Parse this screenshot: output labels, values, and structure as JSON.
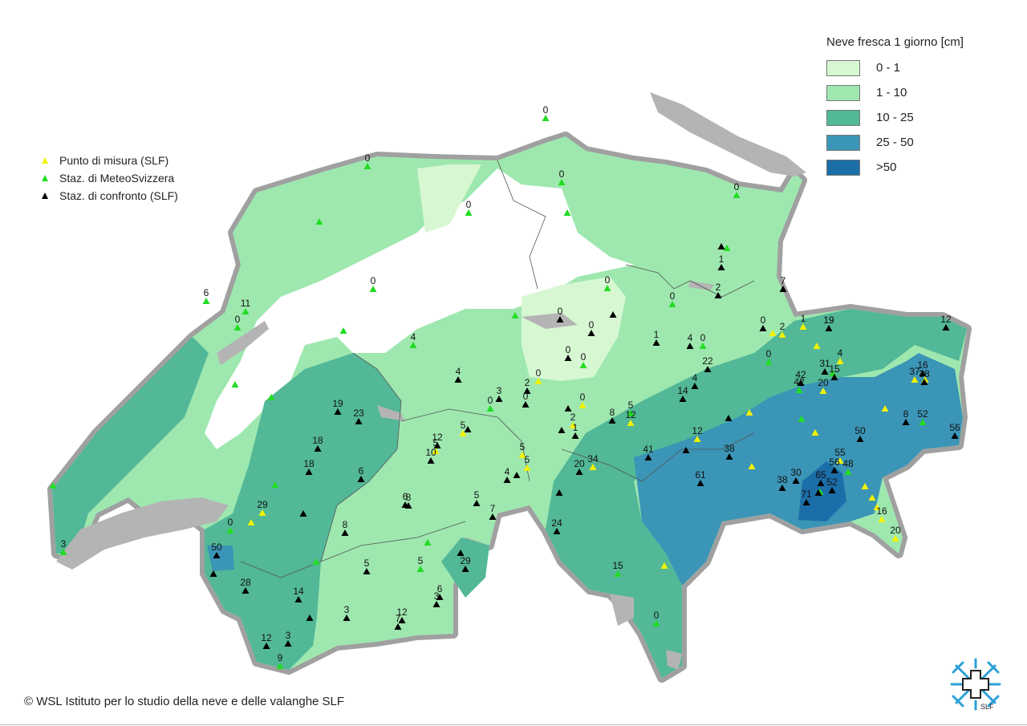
{
  "legend": {
    "title": "Neve fresca 1 giorno [cm]",
    "classes": [
      {
        "label": "0 - 1",
        "color": "#d7f7d2"
      },
      {
        "label": "1 - 10",
        "color": "#9ee8b0"
      },
      {
        "label": "10 - 25",
        "color": "#52b897"
      },
      {
        "label": "25 - 50",
        "color": "#3b95b6"
      },
      {
        "label": ">50",
        "color": "#1c6ea8"
      }
    ]
  },
  "station_types": [
    {
      "label": "Punto di misura (SLF)",
      "color": "#f2f200"
    },
    {
      "label": "Staz. di MeteoSvizzera",
      "color": "#22dd22"
    },
    {
      "label": "Staz. di confronto (SLF)",
      "color": "#000000"
    }
  ],
  "colors": {
    "border": "#a0a0a0",
    "lakes": "#b4b4b4",
    "land_outside": "#ffffff"
  },
  "copyright": "© WSL Istituto per lo studio della neve e delle valanghe SLF",
  "logo_text": "SLF",
  "stations": [
    {
      "v": "0",
      "t": 1,
      "p": [
        680,
        148
      ]
    },
    {
      "v": "0",
      "t": 1,
      "p": [
        458,
        208
      ]
    },
    {
      "v": "0",
      "t": 1,
      "p": [
        700,
        228
      ]
    },
    {
      "v": "0",
      "t": 1,
      "p": [
        584,
        266
      ]
    },
    {
      "v": "",
      "t": 1,
      "p": [
        707,
        266
      ]
    },
    {
      "v": "0",
      "t": 1,
      "p": [
        918,
        244
      ]
    },
    {
      "v": "",
      "t": 1,
      "p": [
        398,
        277
      ]
    },
    {
      "v": "6",
      "t": 1,
      "p": [
        257,
        376
      ]
    },
    {
      "v": "11",
      "t": 1,
      "p": [
        306,
        389
      ]
    },
    {
      "v": "0",
      "t": 1,
      "p": [
        296,
        409
      ]
    },
    {
      "v": "0",
      "t": 1,
      "p": [
        465,
        361
      ]
    },
    {
      "v": "",
      "t": 1,
      "p": [
        428,
        413
      ]
    },
    {
      "v": "4",
      "t": 1,
      "p": [
        515,
        431
      ]
    },
    {
      "v": "",
      "t": 1,
      "p": [
        293,
        480
      ]
    },
    {
      "v": "",
      "t": 1,
      "p": [
        338,
        496
      ]
    },
    {
      "v": "",
      "t": 1,
      "p": [
        66,
        606
      ]
    },
    {
      "v": "3",
      "t": 1,
      "p": [
        79,
        689
      ]
    },
    {
      "v": "0",
      "t": 1,
      "p": [
        757,
        360
      ]
    },
    {
      "v": "0",
      "t": 1,
      "p": [
        838,
        380
      ]
    },
    {
      "v": "",
      "t": 1,
      "p": [
        642,
        394
      ]
    },
    {
      "v": "0",
      "t": 1,
      "p": [
        727,
        456
      ]
    },
    {
      "v": "0",
      "t": 1,
      "p": [
        611,
        510
      ]
    },
    {
      "v": "5",
      "t": 1,
      "p": [
        786,
        516
      ]
    },
    {
      "v": "0",
      "t": 1,
      "p": [
        876,
        432
      ]
    },
    {
      "v": "0",
      "t": 1,
      "p": [
        958,
        452
      ]
    },
    {
      "v": "",
      "t": 1,
      "p": [
        999,
        523
      ]
    },
    {
      "v": "42",
      "t": 1,
      "p": [
        996,
        487
      ]
    },
    {
      "v": "52",
      "t": 1,
      "p": [
        1150,
        527
      ]
    },
    {
      "v": "48",
      "t": 1,
      "p": [
        1057,
        589
      ]
    },
    {
      "v": "",
      "t": 1,
      "p": [
        1022,
        614
      ]
    },
    {
      "v": "",
      "t": 1,
      "p": [
        343,
        605
      ]
    },
    {
      "v": "0",
      "t": 1,
      "p": [
        287,
        662
      ]
    },
    {
      "v": "",
      "t": 1,
      "p": [
        394,
        701
      ]
    },
    {
      "v": "",
      "t": 1,
      "p": [
        533,
        677
      ]
    },
    {
      "v": "5",
      "t": 1,
      "p": [
        524,
        710
      ]
    },
    {
      "v": "15",
      "t": 1,
      "p": [
        770,
        716
      ]
    },
    {
      "v": "0",
      "t": 1,
      "p": [
        818,
        778
      ]
    },
    {
      "v": "9",
      "t": 1,
      "p": [
        349,
        831
      ]
    },
    {
      "v": "",
      "t": 1,
      "p": [
        906,
        310
      ]
    },
    {
      "v": "",
      "t": 1,
      "p": [
        1038,
        466
      ]
    },
    {
      "v": "19",
      "t": 1,
      "p": [
        1033,
        410
      ]
    },
    {
      "v": "0",
      "t": 0,
      "p": [
        671,
        476
      ]
    },
    {
      "v": "1",
      "t": 0,
      "p": [
        1001,
        408
      ]
    },
    {
      "v": "",
      "t": 0,
      "p": [
        963,
        416
      ]
    },
    {
      "v": "2",
      "t": 0,
      "p": [
        975,
        418
      ]
    },
    {
      "v": "",
      "t": 0,
      "p": [
        1018,
        432
      ]
    },
    {
      "v": "4",
      "t": 0,
      "p": [
        1047,
        451
      ]
    },
    {
      "v": "20",
      "t": 0,
      "p": [
        1026,
        488
      ]
    },
    {
      "v": "37",
      "t": 0,
      "p": [
        1140,
        474
      ]
    },
    {
      "v": "",
      "t": 0,
      "p": [
        1103,
        510
      ]
    },
    {
      "v": "",
      "t": 0,
      "p": [
        1016,
        540
      ]
    },
    {
      "v": "",
      "t": 0,
      "p": [
        934,
        515
      ]
    },
    {
      "v": "12",
      "t": 0,
      "p": [
        869,
        548
      ]
    },
    {
      "v": "",
      "t": 0,
      "p": [
        937,
        582
      ]
    },
    {
      "v": "55",
      "t": 0,
      "p": [
        1047,
        575
      ]
    },
    {
      "v": "",
      "t": 0,
      "p": [
        1078,
        607
      ]
    },
    {
      "v": "",
      "t": 0,
      "p": [
        1087,
        621
      ]
    },
    {
      "v": "",
      "t": 0,
      "p": [
        1093,
        633
      ]
    },
    {
      "v": "16",
      "t": 0,
      "p": [
        1099,
        648
      ]
    },
    {
      "v": "20",
      "t": 0,
      "p": [
        1116,
        672
      ]
    },
    {
      "v": "",
      "t": 0,
      "p": [
        828,
        706
      ]
    },
    {
      "v": "0",
      "t": 0,
      "p": [
        726,
        506
      ]
    },
    {
      "v": "2",
      "t": 0,
      "p": [
        714,
        531
      ]
    },
    {
      "v": "12",
      "t": 0,
      "p": [
        786,
        528
      ]
    },
    {
      "v": "34",
      "t": 0,
      "p": [
        739,
        583
      ]
    },
    {
      "v": "5",
      "t": 0,
      "p": [
        577,
        541
      ]
    },
    {
      "v": "5",
      "t": 0,
      "p": [
        543,
        563
      ]
    },
    {
      "v": "5",
      "t": 0,
      "p": [
        651,
        568
      ]
    },
    {
      "v": "5",
      "t": 0,
      "p": [
        657,
        584
      ]
    },
    {
      "v": "29",
      "t": 0,
      "p": [
        327,
        640
      ]
    },
    {
      "v": "",
      "t": 0,
      "p": [
        313,
        652
      ]
    },
    {
      "v": "",
      "t": 0,
      "p": [
        1153,
        474
      ]
    },
    {
      "v": "1",
      "t": 2,
      "p": [
        899,
        334
      ]
    },
    {
      "v": "",
      "t": 2,
      "p": [
        899,
        308
      ]
    },
    {
      "v": "2",
      "t": 2,
      "p": [
        895,
        369
      ]
    },
    {
      "v": "7",
      "t": 2,
      "p": [
        976,
        361
      ]
    },
    {
      "v": "0",
      "t": 2,
      "p": [
        951,
        410
      ]
    },
    {
      "v": "19",
      "t": 2,
      "p": [
        1033,
        410
      ]
    },
    {
      "v": "12",
      "t": 2,
      "p": [
        1179,
        409
      ]
    },
    {
      "v": "16",
      "t": 2,
      "p": [
        1150,
        466
      ]
    },
    {
      "v": "38",
      "t": 2,
      "p": [
        1152,
        477
      ]
    },
    {
      "v": "31",
      "t": 2,
      "p": [
        1028,
        464
      ]
    },
    {
      "v": "15",
      "t": 2,
      "p": [
        1040,
        471
      ]
    },
    {
      "v": "42",
      "t": 2,
      "p": [
        998,
        478
      ]
    },
    {
      "v": "8",
      "t": 2,
      "p": [
        1129,
        527
      ]
    },
    {
      "v": "50",
      "t": 2,
      "p": [
        1072,
        548
      ]
    },
    {
      "v": "56",
      "t": 2,
      "p": [
        1190,
        544
      ]
    },
    {
      "v": "30",
      "t": 2,
      "p": [
        992,
        600
      ]
    },
    {
      "v": "38",
      "t": 2,
      "p": [
        975,
        609
      ]
    },
    {
      "v": "56",
      "t": 2,
      "p": [
        1040,
        587
      ]
    },
    {
      "v": "65",
      "t": 2,
      "p": [
        1023,
        603
      ]
    },
    {
      "v": "52",
      "t": 2,
      "p": [
        1037,
        612
      ]
    },
    {
      "v": "71",
      "t": 2,
      "p": [
        1005,
        627
      ]
    },
    {
      "v": "",
      "t": 2,
      "p": [
        1020,
        615
      ]
    },
    {
      "v": "1",
      "t": 2,
      "p": [
        818,
        428
      ]
    },
    {
      "v": "4",
      "t": 2,
      "p": [
        860,
        432
      ]
    },
    {
      "v": "22",
      "t": 2,
      "p": [
        882,
        461
      ]
    },
    {
      "v": "4",
      "t": 2,
      "p": [
        866,
        482
      ]
    },
    {
      "v": "14",
      "t": 2,
      "p": [
        851,
        498
      ]
    },
    {
      "v": "",
      "t": 2,
      "p": [
        908,
        522
      ]
    },
    {
      "v": "38",
      "t": 2,
      "p": [
        909,
        570
      ]
    },
    {
      "v": "61",
      "t": 2,
      "p": [
        873,
        603
      ]
    },
    {
      "v": "41",
      "t": 2,
      "p": [
        808,
        571
      ]
    },
    {
      "v": "",
      "t": 2,
      "p": [
        855,
        562
      ]
    },
    {
      "v": "8",
      "t": 2,
      "p": [
        763,
        525
      ]
    },
    {
      "v": "",
      "t": 2,
      "p": [
        708,
        510
      ]
    },
    {
      "v": "",
      "t": 2,
      "p": [
        700,
        537
      ]
    },
    {
      "v": "1",
      "t": 2,
      "p": [
        717,
        544
      ]
    },
    {
      "v": "20",
      "t": 2,
      "p": [
        722,
        589
      ]
    },
    {
      "v": "24",
      "t": 2,
      "p": [
        694,
        663
      ]
    },
    {
      "v": "",
      "t": 2,
      "p": [
        697,
        615
      ]
    },
    {
      "v": "",
      "t": 2,
      "p": [
        764,
        393
      ]
    },
    {
      "v": "0",
      "t": 2,
      "p": [
        698,
        399
      ]
    },
    {
      "v": "0",
      "t": 2,
      "p": [
        737,
        416
      ]
    },
    {
      "v": "0",
      "t": 2,
      "p": [
        708,
        447
      ]
    },
    {
      "v": "2",
      "t": 2,
      "p": [
        657,
        488
      ]
    },
    {
      "v": "3",
      "t": 2,
      "p": [
        622,
        498
      ]
    },
    {
      "v": "0",
      "t": 2,
      "p": [
        655,
        505
      ]
    },
    {
      "v": "4",
      "t": 2,
      "p": [
        571,
        474
      ]
    },
    {
      "v": "12",
      "t": 2,
      "p": [
        545,
        556
      ]
    },
    {
      "v": "10",
      "t": 2,
      "p": [
        537,
        575
      ]
    },
    {
      "v": "",
      "t": 2,
      "p": [
        644,
        593
      ]
    },
    {
      "v": "4",
      "t": 2,
      "p": [
        632,
        599
      ]
    },
    {
      "v": "5",
      "t": 2,
      "p": [
        594,
        628
      ]
    },
    {
      "v": "7",
      "t": 2,
      "p": [
        614,
        645
      ]
    },
    {
      "v": "6",
      "t": 2,
      "p": [
        505,
        630
      ]
    },
    {
      "v": "8",
      "t": 2,
      "p": [
        509,
        631
      ]
    },
    {
      "v": "",
      "t": 2,
      "p": [
        574,
        690
      ]
    },
    {
      "v": "29",
      "t": 2,
      "p": [
        580,
        710
      ]
    },
    {
      "v": "5",
      "t": 2,
      "p": [
        457,
        713
      ]
    },
    {
      "v": "6",
      "t": 2,
      "p": [
        548,
        745
      ]
    },
    {
      "v": "3",
      "t": 2,
      "p": [
        544,
        754
      ]
    },
    {
      "v": "12",
      "t": 2,
      "p": [
        501,
        774
      ]
    },
    {
      "v": "7",
      "t": 2,
      "p": [
        496,
        782
      ]
    },
    {
      "v": "3",
      "t": 2,
      "p": [
        432,
        771
      ]
    },
    {
      "v": "19",
      "t": 2,
      "p": [
        421,
        514
      ]
    },
    {
      "v": "23",
      "t": 2,
      "p": [
        447,
        526
      ]
    },
    {
      "v": "18",
      "t": 2,
      "p": [
        396,
        560
      ]
    },
    {
      "v": "18",
      "t": 2,
      "p": [
        385,
        589
      ]
    },
    {
      "v": "6",
      "t": 2,
      "p": [
        450,
        598
      ]
    },
    {
      "v": "",
      "t": 2,
      "p": [
        378,
        641
      ]
    },
    {
      "v": "8",
      "t": 2,
      "p": [
        430,
        665
      ]
    },
    {
      "v": "50",
      "t": 2,
      "p": [
        270,
        693
      ]
    },
    {
      "v": "",
      "t": 2,
      "p": [
        266,
        716
      ]
    },
    {
      "v": "28",
      "t": 2,
      "p": [
        306,
        737
      ]
    },
    {
      "v": "14",
      "t": 2,
      "p": [
        372,
        748
      ]
    },
    {
      "v": "",
      "t": 2,
      "p": [
        386,
        771
      ]
    },
    {
      "v": "3",
      "t": 2,
      "p": [
        359,
        803
      ]
    },
    {
      "v": "12",
      "t": 2,
      "p": [
        332,
        806
      ]
    },
    {
      "v": "",
      "t": 2,
      "p": [
        583,
        536
      ]
    }
  ]
}
